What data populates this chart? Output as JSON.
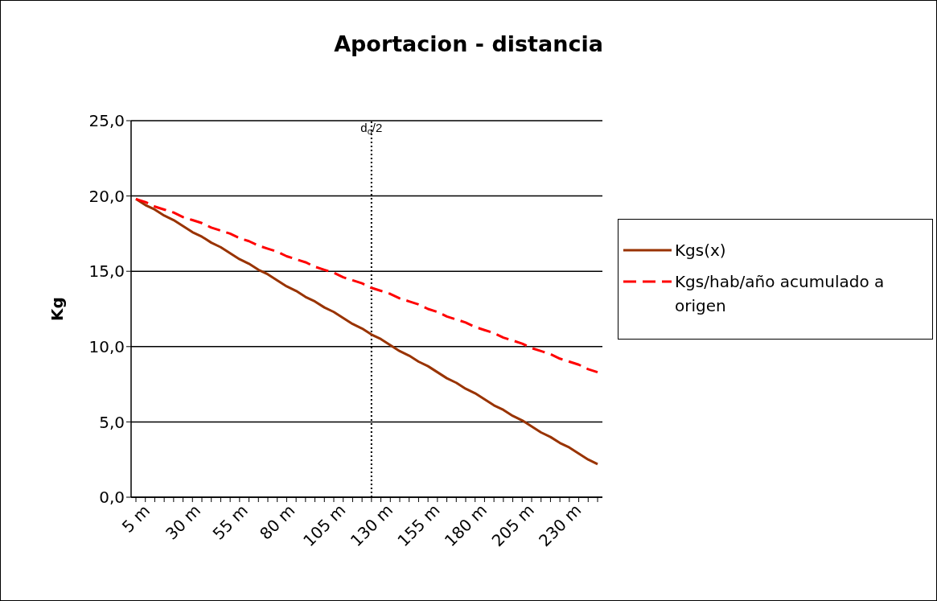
{
  "chart_data": {
    "type": "line",
    "title": "Aportacion - distancia",
    "ylabel": "Kg",
    "categories": [
      "5 m",
      null,
      null,
      null,
      null,
      "30 m",
      null,
      null,
      null,
      null,
      "55 m",
      null,
      null,
      null,
      null,
      "80 m",
      null,
      null,
      null,
      null,
      "105 m",
      null,
      null,
      null,
      null,
      "130 m",
      null,
      null,
      null,
      null,
      "155 m",
      null,
      null,
      null,
      null,
      "180 m",
      null,
      null,
      null,
      null,
      "205 m",
      null,
      null,
      null,
      null,
      "230 m",
      null,
      null,
      null,
      null
    ],
    "series": [
      {
        "name": "Kgs(x)",
        "color": "#993300",
        "line_style": "solid",
        "values": [
          19.8,
          19.4,
          19.1,
          18.7,
          18.4,
          18.0,
          17.6,
          17.3,
          16.9,
          16.6,
          16.2,
          15.8,
          15.5,
          15.1,
          14.8,
          14.4,
          14.0,
          13.7,
          13.3,
          13.0,
          12.6,
          12.3,
          11.9,
          11.5,
          11.2,
          10.8,
          10.5,
          10.1,
          9.7,
          9.4,
          9.0,
          8.7,
          8.3,
          7.9,
          7.6,
          7.2,
          6.9,
          6.5,
          6.1,
          5.8,
          5.4,
          5.1,
          4.7,
          4.3,
          4.0,
          3.6,
          3.3,
          2.9,
          2.5,
          2.2
        ]
      },
      {
        "name": "Kgs/hab/año acumulado a origen",
        "color": "#ff0000",
        "line_style": "dashed",
        "values": [
          19.8,
          19.6,
          19.3,
          19.1,
          18.9,
          18.6,
          18.4,
          18.2,
          17.9,
          17.7,
          17.5,
          17.2,
          17.0,
          16.7,
          16.5,
          16.3,
          16.0,
          15.8,
          15.6,
          15.3,
          15.1,
          14.9,
          14.6,
          14.4,
          14.2,
          13.9,
          13.7,
          13.5,
          13.2,
          13.0,
          12.8,
          12.5,
          12.3,
          12.0,
          11.8,
          11.6,
          11.3,
          11.1,
          10.9,
          10.6,
          10.4,
          10.2,
          9.9,
          9.7,
          9.5,
          9.2,
          9.0,
          8.8,
          8.5,
          8.3
        ]
      }
    ],
    "ylim": [
      0,
      25
    ],
    "yticks": [
      {
        "value": 0,
        "label": "0,0"
      },
      {
        "value": 5,
        "label": "5,0"
      },
      {
        "value": 10,
        "label": "10,0"
      },
      {
        "value": 15,
        "label": "15,0"
      },
      {
        "value": 20,
        "label": "20,0"
      },
      {
        "value": 25,
        "label": "25,0"
      }
    ],
    "grid": "y",
    "legend": "right",
    "marker": "none",
    "ref_lines": [
      {
        "axis": "x",
        "value": "130 m",
        "label": "d$_{o}$/2",
        "line_style": "dotted",
        "color": "#000000"
      }
    ]
  }
}
